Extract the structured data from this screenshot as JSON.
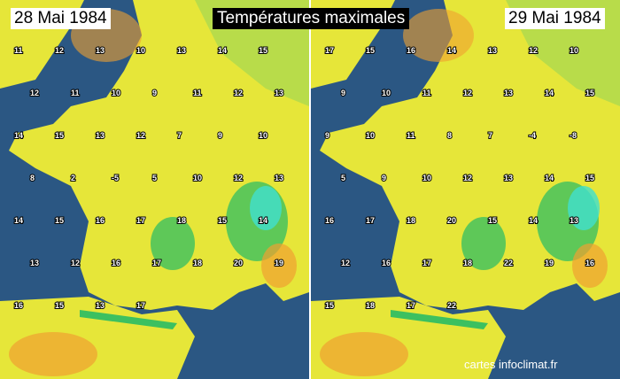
{
  "title": "Températures maximales",
  "left_date": "28 Mai 1984",
  "right_date": "29 Mai 1984",
  "credit": "cartes infoclimat.fr",
  "colors": {
    "sea": "#2b5783",
    "land_mild": "#e6e639",
    "land_cool": "#b8dc4a",
    "mountain": "#3cc060",
    "warm": "#f0a030",
    "snow": "#40e0d0"
  },
  "left_values": [
    "11",
    "12",
    "13",
    "10",
    "13",
    "14",
    "15",
    "12",
    "11",
    "10",
    "9",
    "11",
    "12",
    "13",
    "14",
    "15",
    "13",
    "12",
    "7",
    "9",
    "10",
    "8",
    "2",
    "-5",
    "5",
    "10",
    "12",
    "13",
    "14",
    "15",
    "16",
    "17",
    "18",
    "15",
    "14",
    "13",
    "12",
    "16",
    "17",
    "18",
    "20",
    "19",
    "16",
    "15",
    "13",
    "17"
  ],
  "right_values": [
    "17",
    "15",
    "16",
    "14",
    "13",
    "12",
    "10",
    "9",
    "10",
    "11",
    "12",
    "13",
    "14",
    "15",
    "9",
    "10",
    "11",
    "8",
    "7",
    "-4",
    "-8",
    "5",
    "9",
    "10",
    "12",
    "13",
    "14",
    "15",
    "16",
    "17",
    "18",
    "20",
    "15",
    "14",
    "13",
    "12",
    "16",
    "17",
    "18",
    "22",
    "19",
    "16",
    "15",
    "18",
    "17",
    "22"
  ]
}
